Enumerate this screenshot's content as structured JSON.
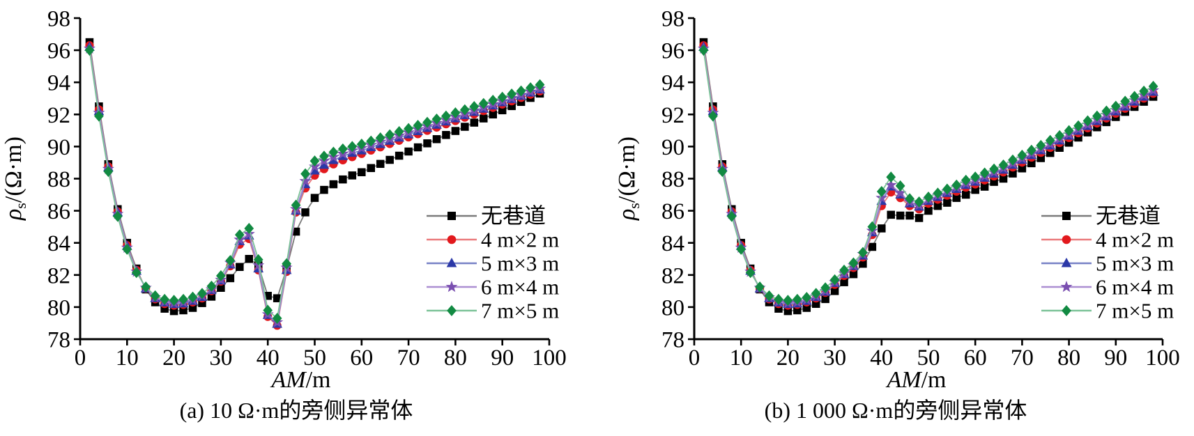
{
  "figure": {
    "background": "#ffffff"
  },
  "chart_data": [
    {
      "type": "line",
      "caption": "(a) 10 Ω·m的旁侧异常体",
      "x_axis": {
        "label_italic": "AM",
        "label_unit": "/m",
        "range": [
          0,
          100
        ],
        "ticks": [
          0,
          10,
          20,
          30,
          40,
          50,
          60,
          70,
          80,
          90,
          100
        ]
      },
      "y_axis": {
        "label_symbol": "ρ",
        "label_sub": "s",
        "label_unit": "/(Ω·m)",
        "range": [
          78,
          98
        ],
        "ticks": [
          78,
          80,
          82,
          84,
          86,
          88,
          90,
          92,
          94,
          96,
          98
        ]
      },
      "legend_position": "inside-right",
      "grid": false,
      "x": [
        2,
        4,
        6,
        8,
        10,
        12,
        14,
        16,
        18,
        20,
        22,
        24,
        26,
        28,
        30,
        32,
        34,
        36,
        38,
        40,
        42,
        44,
        46,
        48,
        50,
        52,
        54,
        56,
        58,
        60,
        62,
        64,
        66,
        68,
        70,
        72,
        74,
        76,
        78,
        80,
        82,
        84,
        86,
        88,
        90,
        92,
        94,
        96,
        98
      ],
      "series": [
        {
          "name": "无巷道",
          "marker": "square",
          "color": "#000000",
          "line_color": "#7a7a7a",
          "values": [
            96.5,
            92.5,
            88.9,
            86.1,
            84.0,
            82.4,
            81.1,
            80.3,
            79.9,
            79.75,
            79.8,
            79.95,
            80.25,
            80.65,
            81.2,
            81.8,
            82.5,
            83.0,
            82.6,
            80.7,
            80.55,
            82.4,
            84.7,
            85.9,
            86.8,
            87.3,
            87.65,
            87.95,
            88.2,
            88.4,
            88.66,
            88.92,
            89.17,
            89.43,
            89.69,
            89.95,
            90.2,
            90.46,
            90.72,
            90.97,
            91.23,
            91.49,
            91.75,
            92.0,
            92.26,
            92.52,
            92.78,
            93.03,
            93.3
          ]
        },
        {
          "name": "4 m×2 m",
          "marker": "circle",
          "color": "#e2191d",
          "line_color": "#ea7a7c",
          "values": [
            96.3,
            92.3,
            88.75,
            85.95,
            83.85,
            82.3,
            81.15,
            80.5,
            80.2,
            80.1,
            80.15,
            80.3,
            80.55,
            81.0,
            81.6,
            82.55,
            83.9,
            84.25,
            82.3,
            79.4,
            78.85,
            82.2,
            85.9,
            87.4,
            88.2,
            88.6,
            88.9,
            89.15,
            89.35,
            89.55,
            89.76,
            89.96,
            90.17,
            90.37,
            90.58,
            90.78,
            90.99,
            91.19,
            91.4,
            91.6,
            91.81,
            92.01,
            92.22,
            92.42,
            92.63,
            92.83,
            93.04,
            93.24,
            93.45
          ]
        },
        {
          "name": "5 m×3 m",
          "marker": "triangle",
          "color": "#2b38a7",
          "line_color": "#7680c6",
          "values": [
            96.2,
            92.2,
            88.7,
            85.9,
            83.8,
            82.25,
            81.15,
            80.55,
            80.28,
            80.18,
            80.22,
            80.38,
            80.62,
            81.05,
            81.65,
            82.65,
            84.1,
            84.45,
            82.4,
            79.5,
            78.95,
            82.3,
            86.0,
            87.65,
            88.5,
            88.85,
            89.15,
            89.4,
            89.6,
            89.75,
            89.95,
            90.15,
            90.35,
            90.55,
            90.75,
            90.95,
            91.15,
            91.35,
            91.55,
            91.75,
            91.95,
            92.15,
            92.35,
            92.55,
            92.75,
            92.95,
            93.15,
            93.35,
            93.55
          ]
        },
        {
          "name": "6 m×4 m",
          "marker": "star",
          "color": "#7a4fb0",
          "line_color": "#ab8ed2",
          "values": [
            96.1,
            92.1,
            88.6,
            85.8,
            83.7,
            82.2,
            81.2,
            80.6,
            80.33,
            80.25,
            80.3,
            80.45,
            80.7,
            81.1,
            81.7,
            82.75,
            84.2,
            84.55,
            82.6,
            79.55,
            79.05,
            82.45,
            86.1,
            87.85,
            88.75,
            89.1,
            89.35,
            89.55,
            89.75,
            89.9,
            90.09,
            90.29,
            90.48,
            90.68,
            90.87,
            91.07,
            91.26,
            91.46,
            91.65,
            91.85,
            92.04,
            92.24,
            92.43,
            92.63,
            92.82,
            93.02,
            93.21,
            93.41,
            93.6
          ]
        },
        {
          "name": "7 m×5 m",
          "marker": "diamond",
          "color": "#128a42",
          "line_color": "#7bc297",
          "values": [
            96.0,
            91.9,
            88.45,
            85.65,
            83.6,
            82.15,
            81.25,
            80.7,
            80.48,
            80.42,
            80.48,
            80.62,
            80.85,
            81.3,
            81.95,
            82.9,
            84.5,
            84.9,
            82.95,
            79.8,
            79.3,
            82.7,
            86.35,
            88.3,
            89.1,
            89.4,
            89.65,
            89.85,
            90.0,
            90.15,
            90.34,
            90.54,
            90.73,
            90.93,
            91.12,
            91.32,
            91.51,
            91.71,
            91.9,
            92.1,
            92.29,
            92.49,
            92.68,
            92.88,
            93.07,
            93.27,
            93.46,
            93.66,
            93.85
          ]
        }
      ]
    },
    {
      "type": "line",
      "caption": "(b) 1 000 Ω·m的旁侧异常体",
      "x_axis": {
        "label_italic": "AM",
        "label_unit": "/m",
        "range": [
          0,
          100
        ],
        "ticks": [
          0,
          10,
          20,
          30,
          40,
          50,
          60,
          70,
          80,
          90,
          100
        ]
      },
      "y_axis": {
        "label_symbol": "ρ",
        "label_sub": "s",
        "label_unit": "/(Ω·m)",
        "range": [
          78,
          98
        ],
        "ticks": [
          78,
          80,
          82,
          84,
          86,
          88,
          90,
          92,
          94,
          96,
          98
        ]
      },
      "legend_position": "inside-right",
      "grid": false,
      "x": [
        2,
        4,
        6,
        8,
        10,
        12,
        14,
        16,
        18,
        20,
        22,
        24,
        26,
        28,
        30,
        32,
        34,
        36,
        38,
        40,
        42,
        44,
        46,
        48,
        50,
        52,
        54,
        56,
        58,
        60,
        62,
        64,
        66,
        68,
        70,
        72,
        74,
        76,
        78,
        80,
        82,
        84,
        86,
        88,
        90,
        92,
        94,
        96,
        98
      ],
      "series": [
        {
          "name": "无巷道",
          "marker": "square",
          "color": "#000000",
          "line_color": "#7a7a7a",
          "values": [
            96.5,
            92.5,
            88.9,
            86.1,
            84.0,
            82.4,
            81.1,
            80.3,
            79.9,
            79.75,
            79.8,
            79.95,
            80.2,
            80.5,
            81.0,
            81.55,
            82.05,
            82.7,
            83.75,
            84.9,
            85.75,
            85.7,
            85.7,
            85.55,
            86.0,
            86.3,
            86.5,
            86.8,
            87.0,
            87.3,
            87.5,
            87.8,
            88.0,
            88.32,
            88.64,
            88.96,
            89.28,
            89.6,
            89.92,
            90.24,
            90.56,
            90.88,
            91.2,
            91.52,
            91.84,
            92.16,
            92.47,
            92.79,
            93.1
          ]
        },
        {
          "name": "4 m×2 m",
          "marker": "circle",
          "color": "#e2191d",
          "line_color": "#ea7a7c",
          "values": [
            96.3,
            92.3,
            88.75,
            85.95,
            83.85,
            82.3,
            81.15,
            80.5,
            80.2,
            80.1,
            80.15,
            80.3,
            80.55,
            80.9,
            81.4,
            81.95,
            82.45,
            83.1,
            84.5,
            86.3,
            87.15,
            86.8,
            86.3,
            86.1,
            86.45,
            86.7,
            86.95,
            87.2,
            87.45,
            87.65,
            87.9,
            88.15,
            88.4,
            88.71,
            89.01,
            89.32,
            89.62,
            89.93,
            90.23,
            90.54,
            90.84,
            91.15,
            91.45,
            91.76,
            92.06,
            92.37,
            92.67,
            93.0,
            93.3
          ]
        },
        {
          "name": "5 m×3 m",
          "marker": "triangle",
          "color": "#2b38a7",
          "line_color": "#7680c6",
          "values": [
            96.2,
            92.2,
            88.7,
            85.9,
            83.8,
            82.25,
            81.15,
            80.55,
            80.28,
            80.18,
            80.22,
            80.38,
            80.62,
            80.95,
            81.5,
            82.05,
            82.55,
            83.2,
            84.65,
            86.6,
            87.5,
            87.0,
            86.45,
            86.25,
            86.6,
            86.85,
            87.1,
            87.35,
            87.6,
            87.8,
            88.05,
            88.3,
            88.55,
            88.85,
            89.16,
            89.46,
            89.76,
            90.06,
            90.37,
            90.67,
            90.97,
            91.27,
            91.58,
            91.88,
            92.18,
            92.48,
            92.79,
            93.1,
            93.4
          ]
        },
        {
          "name": "6 m×4 m",
          "marker": "star",
          "color": "#7a4fb0",
          "line_color": "#ab8ed2",
          "values": [
            96.1,
            92.1,
            88.6,
            85.8,
            83.7,
            82.2,
            81.2,
            80.6,
            80.33,
            80.25,
            80.3,
            80.45,
            80.68,
            81.0,
            81.55,
            82.1,
            82.6,
            83.3,
            84.75,
            86.8,
            87.6,
            87.1,
            86.55,
            86.35,
            86.7,
            86.95,
            87.2,
            87.45,
            87.7,
            87.9,
            88.15,
            88.4,
            88.65,
            88.95,
            89.26,
            89.56,
            89.86,
            90.16,
            90.47,
            90.77,
            91.07,
            91.37,
            91.68,
            91.98,
            92.28,
            92.58,
            92.89,
            93.2,
            93.5
          ]
        },
        {
          "name": "7 m×5 m",
          "marker": "diamond",
          "color": "#128a42",
          "line_color": "#7bc297",
          "values": [
            96.0,
            91.9,
            88.45,
            85.65,
            83.6,
            82.15,
            81.25,
            80.7,
            80.48,
            80.42,
            80.48,
            80.6,
            80.85,
            81.2,
            81.7,
            82.3,
            82.75,
            83.4,
            85.0,
            87.2,
            88.1,
            87.55,
            86.75,
            86.55,
            86.85,
            87.1,
            87.35,
            87.6,
            87.9,
            88.1,
            88.35,
            88.6,
            88.85,
            89.16,
            89.46,
            89.77,
            90.07,
            90.38,
            90.68,
            90.99,
            91.29,
            91.6,
            91.9,
            92.21,
            92.51,
            92.82,
            93.12,
            93.45,
            93.75
          ]
        }
      ]
    }
  ]
}
